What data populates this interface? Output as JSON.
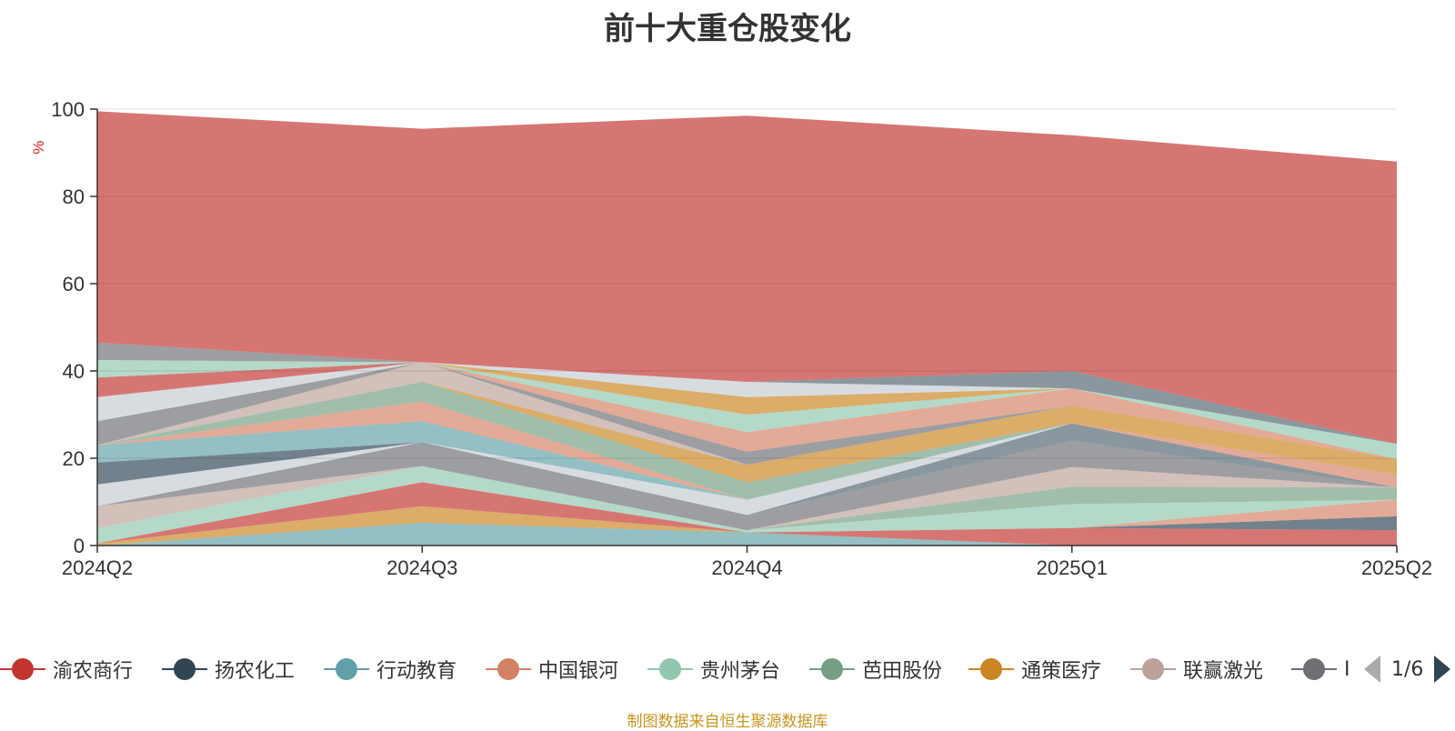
{
  "title": "前十大重仓股变化",
  "ylabel": "%",
  "source": "制图数据来自恒生聚源数据库",
  "pager": "1/6",
  "legend_items": [
    {
      "name": "渝农商行",
      "color": "#c23531"
    },
    {
      "name": "扬农化工",
      "color": "#2f4554"
    },
    {
      "name": "行动教育",
      "color": "#61a0a8"
    },
    {
      "name": "中国银河",
      "color": "#d48265"
    },
    {
      "name": "贵州茅台",
      "color": "#91c7ae"
    },
    {
      "name": "芭田股份",
      "color": "#749f83"
    },
    {
      "name": "通策医疗",
      "color": "#ca8622"
    },
    {
      "name": "联赢激光",
      "color": "#bda29a"
    },
    {
      "name": "I",
      "color": "#6e7074"
    }
  ],
  "chart_data": {
    "type": "area",
    "title": "前十大重仓股变化",
    "ylabel": "%",
    "xlabel": "",
    "categories": [
      "2024Q2",
      "2024Q3",
      "2024Q4",
      "2025Q1",
      "2025Q2"
    ],
    "ylim": [
      0,
      100
    ],
    "yticks": [
      0,
      20,
      40,
      60,
      80,
      100
    ],
    "grid": true,
    "stacked": true,
    "legend_position": "bottom",
    "series": [
      {
        "color": "#61a0a8",
        "values": [
          0,
          5.2,
          3.0,
          0,
          0
        ]
      },
      {
        "color": "#ca8622",
        "values": [
          0.5,
          3.8,
          0,
          0,
          0
        ]
      },
      {
        "color": "#c23531",
        "values": [
          0,
          5.5,
          0,
          4.0,
          3.5
        ]
      },
      {
        "color": "#2f4554",
        "values": [
          0,
          0,
          0,
          0,
          3.2
        ]
      },
      {
        "color": "#d48265",
        "values": [
          0,
          0,
          0,
          0,
          3.8
        ]
      },
      {
        "color": "#91c7ae",
        "values": [
          3.5,
          3.7,
          0.5,
          5.5,
          0
        ]
      },
      {
        "color": "#749f83",
        "values": [
          0,
          0,
          0,
          4.0,
          2.8
        ]
      },
      {
        "color": "#bda29a",
        "values": [
          5.0,
          0,
          0,
          4.5,
          0
        ]
      },
      {
        "color": "#6e7074",
        "values": [
          0,
          5.5,
          3.5,
          6.0,
          0
        ]
      },
      {
        "color": "#546570",
        "values": [
          0,
          0,
          0,
          4.0,
          0
        ]
      },
      {
        "color": "#c4ccd3",
        "values": [
          5.0,
          0,
          3.5,
          0,
          0
        ]
      },
      {
        "color": "#2f4554",
        "values": [
          5.0,
          0,
          0,
          0,
          0
        ]
      },
      {
        "color": "#61a0a8",
        "values": [
          4.0,
          4.8,
          0,
          0,
          0
        ]
      },
      {
        "color": "#d48265",
        "values": [
          0,
          4.5,
          0,
          0,
          3.0
        ]
      },
      {
        "color": "#749f83",
        "values": [
          0,
          4.5,
          4.0,
          0,
          0
        ]
      },
      {
        "color": "#ca8622",
        "values": [
          0,
          0,
          4.0,
          4.0,
          3.5
        ]
      },
      {
        "color": "#bda29a",
        "values": [
          0,
          4.5,
          0,
          0,
          0
        ]
      },
      {
        "color": "#6e7074",
        "values": [
          5.5,
          0,
          3.0,
          0,
          0
        ]
      },
      {
        "color": "#d48265",
        "values": [
          0,
          0,
          4.5,
          4.0,
          0
        ]
      },
      {
        "color": "#91c7ae",
        "values": [
          0,
          0,
          4.0,
          0,
          3.5
        ]
      },
      {
        "color": "#c4ccd3",
        "values": [
          5.5,
          0,
          0,
          0,
          0
        ]
      },
      {
        "color": "#c23531",
        "values": [
          4.5,
          0,
          0,
          0,
          0
        ]
      },
      {
        "color": "#91c7ae",
        "values": [
          4.0,
          0,
          0,
          0,
          0
        ]
      },
      {
        "color": "#ca8622",
        "values": [
          0,
          0,
          4.0,
          0,
          0
        ]
      },
      {
        "color": "#c4ccd3",
        "values": [
          0,
          0,
          3.5,
          0,
          0
        ]
      },
      {
        "color": "#546570",
        "values": [
          0,
          0,
          0,
          4.0,
          0
        ]
      },
      {
        "color": "#6e7074",
        "values": [
          4.0,
          0,
          0,
          0,
          0
        ]
      },
      {
        "color": "#c23531",
        "values": [
          53.0,
          53.5,
          61.0,
          54.0,
          64.7
        ]
      }
    ]
  }
}
